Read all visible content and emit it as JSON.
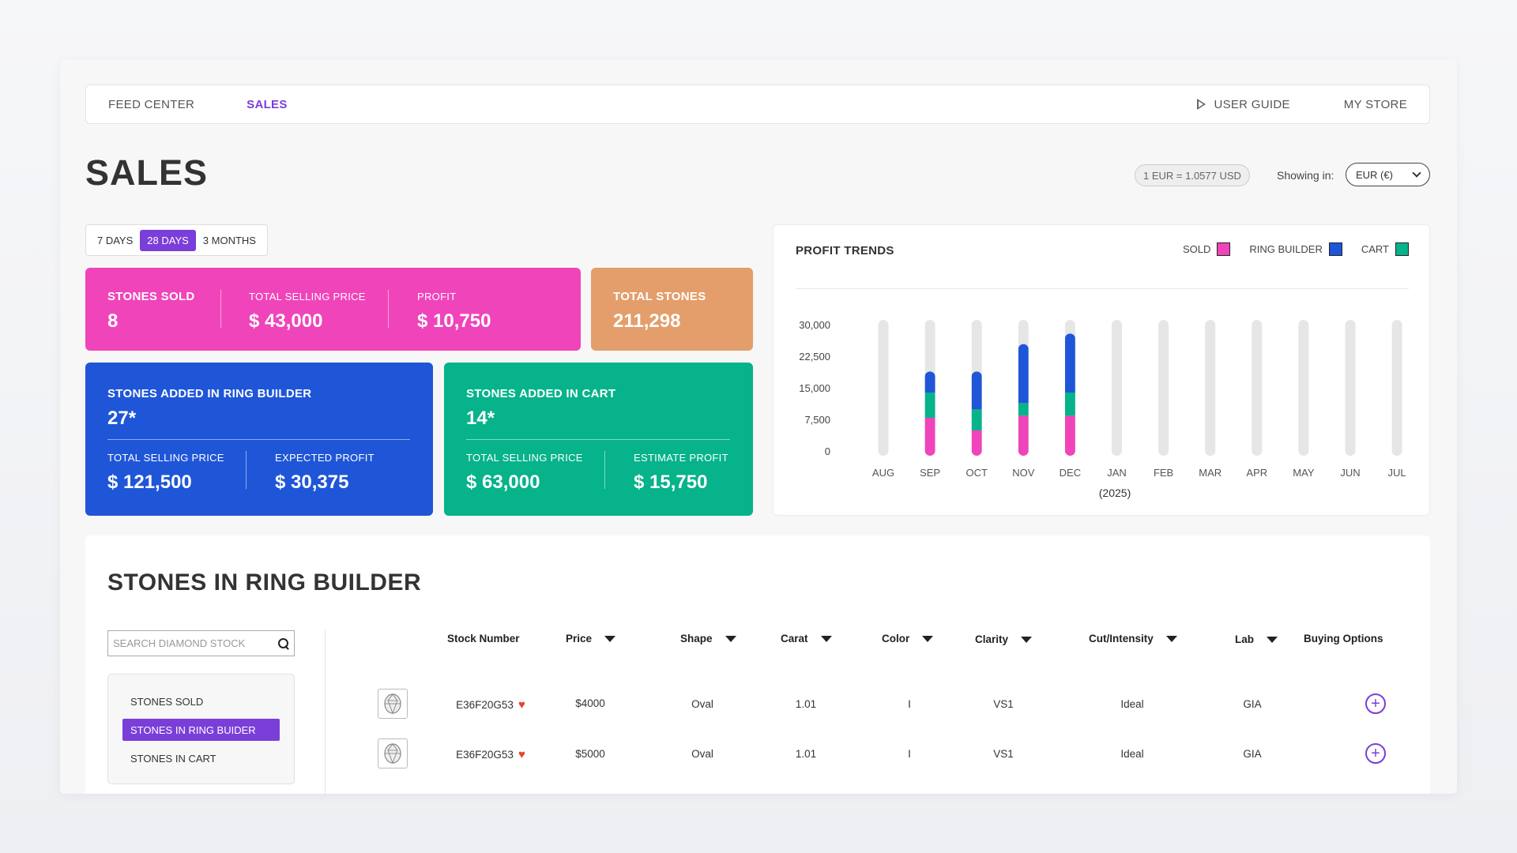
{
  "nav": {
    "left": [
      "FEED CENTER",
      "SALES"
    ],
    "user_guide": "USER GUIDE",
    "my_store": "MY STORE"
  },
  "page_title": "SALES",
  "rate": "1 EUR = 1.0577 USD",
  "showing_label": "Showing in:",
  "currency": "EUR (€)",
  "periods": [
    "7 DAYS",
    "28 DAYS",
    "3 MONTHS"
  ],
  "selected_period": "28 DAYS",
  "sold_card": {
    "stones_label": "STONES SOLD",
    "stones_value": "8",
    "price_label": "TOTAL SELLING PRICE",
    "price_value": "$ 43,000",
    "profit_label": "PROFIT",
    "profit_value": "$ 10,750",
    "color": "#f044ba"
  },
  "total_card": {
    "label": "TOTAL STONES",
    "value": "211,298",
    "color": "#e39e6b"
  },
  "ring_card": {
    "label": "STONES ADDED IN RING BUILDER",
    "value": "27*",
    "price_label": "TOTAL SELLING PRICE",
    "price_value": "$ 121,500",
    "profit_label": "EXPECTED PROFIT",
    "profit_value": "$ 30,375",
    "color": "#1f56d8"
  },
  "cart_card": {
    "label": "STONES ADDED IN CART",
    "value": "14*",
    "price_label": "TOTAL SELLING PRICE",
    "price_value": "$ 63,000",
    "profit_label": "ESTIMATE PROFIT",
    "profit_value": "$ 15,750",
    "color": "#06b38b"
  },
  "chart_data": {
    "type": "bar",
    "title": "PROFIT TRENDS",
    "xlabel": "(2025)",
    "categories": [
      "AUG",
      "SEP",
      "OCT",
      "NOV",
      "DEC",
      "JAN",
      "FEB",
      "MAR",
      "APR",
      "MAY",
      "JUN",
      "JUL"
    ],
    "yticks": [
      "30,000",
      "22,500",
      "15,000",
      "7,500",
      "0"
    ],
    "ylim": [
      0,
      30000
    ],
    "stacked": true,
    "legend": [
      "SOLD",
      "RING BUILDER",
      "CART"
    ],
    "series": [
      {
        "name": "SOLD",
        "color": "#f044ba",
        "values": [
          0,
          9000,
          6000,
          9500,
          9500,
          0,
          0,
          0,
          0,
          0,
          0,
          0
        ]
      },
      {
        "name": "CART",
        "color": "#06b38b",
        "values": [
          0,
          6000,
          5000,
          3000,
          5500,
          0,
          0,
          0,
          0,
          0,
          0,
          0
        ]
      },
      {
        "name": "RING BUILDER",
        "color": "#1f56d8",
        "values": [
          0,
          5000,
          9000,
          14000,
          14000,
          0,
          0,
          0,
          0,
          0,
          0,
          0
        ]
      }
    ]
  },
  "stones": {
    "title": "STONES IN RING BUILDER",
    "search_placeholder": "SEARCH DIAMOND STOCK",
    "filters": [
      "STONES SOLD",
      "STONES IN RING BUIDER",
      "STONES IN CART"
    ],
    "selected_filter": 1,
    "columns": [
      "Stock Number",
      "Price",
      "Shape",
      "Carat",
      "Color",
      "Clarity",
      "Cut/Intensity",
      "Lab",
      "Buying Options"
    ],
    "rows": [
      {
        "stock": "E36F20G53",
        "price": "$4000",
        "shape": "Oval",
        "carat": "1.01",
        "color": "I",
        "clarity": "VS1",
        "cut": "Ideal",
        "lab": "GIA"
      },
      {
        "stock": "E36F20G53",
        "price": "$5000",
        "shape": "Oval",
        "carat": "1.01",
        "color": "I",
        "clarity": "VS1",
        "cut": "Ideal",
        "lab": "GIA"
      }
    ]
  }
}
